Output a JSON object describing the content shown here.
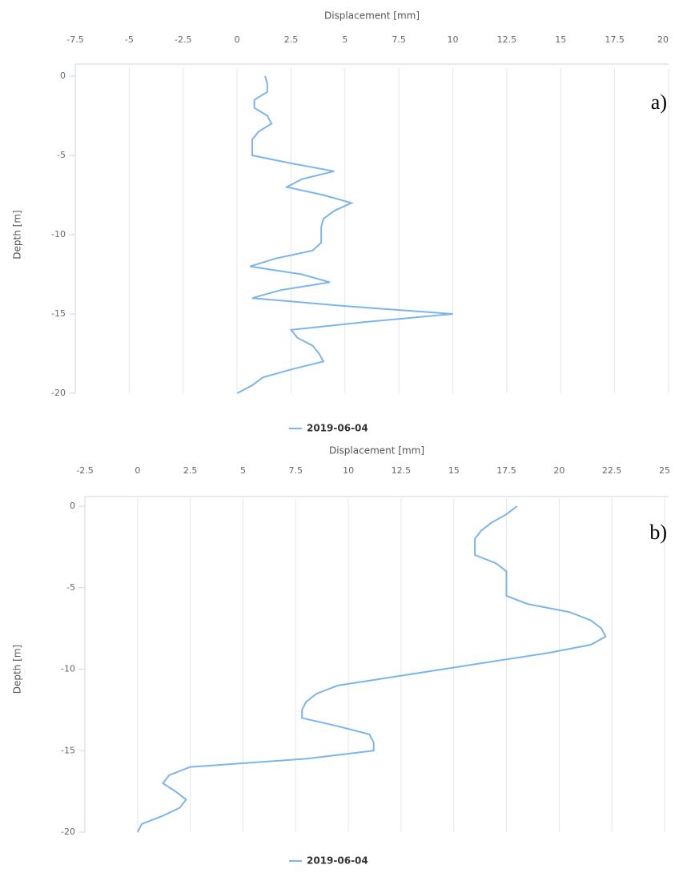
{
  "chart_data": [
    {
      "type": "line",
      "x_label": "Displacement [mm]",
      "y_label": "Depth [m]",
      "annotation": "a)",
      "xlim": [
        -7.5,
        20
      ],
      "xticks": [
        -7.5,
        -5,
        -2.5,
        0,
        2.5,
        5,
        7.5,
        10,
        12.5,
        15,
        17.5,
        20
      ],
      "ylim": [
        -20,
        0
      ],
      "yticks": [
        0,
        -5,
        -10,
        -15,
        -20
      ],
      "grid": true,
      "series": [
        {
          "name": "2019-06-04",
          "color": "#7cb5ec",
          "x": [
            1.3,
            1.4,
            1.4,
            0.8,
            0.8,
            1.4,
            1.6,
            1.0,
            0.7,
            0.7,
            0.7,
            2.5,
            4.5,
            3.0,
            2.3,
            4.0,
            5.3,
            4.5,
            4.0,
            3.9,
            3.9,
            3.9,
            3.5,
            1.8,
            0.6,
            3.0,
            4.3,
            2.0,
            0.7,
            5.0,
            10,
            6.0,
            2.5,
            2.8,
            3.5,
            3.8,
            4.0,
            2.5,
            1.2,
            0.7,
            0
          ],
          "values": [
            0,
            -0.5,
            -1,
            -1.5,
            -2,
            -2.5,
            -3,
            -3.5,
            -4,
            -4.5,
            -5,
            -5.5,
            -6,
            -6.5,
            -7,
            -7.5,
            -8,
            -8.5,
            -9,
            -9.5,
            -10,
            -10.5,
            -11,
            -11.5,
            -12,
            -12.5,
            -13,
            -13.5,
            -14,
            -14.5,
            -15,
            -15.5,
            -16,
            -16.5,
            -17,
            -17.5,
            -18,
            -18.5,
            -19,
            -19.5,
            -20
          ]
        }
      ]
    },
    {
      "type": "line",
      "x_label": "Displacement [mm]",
      "y_label": "Depth [m]",
      "annotation": "b)",
      "xlim": [
        -2.5,
        25
      ],
      "xticks": [
        -2.5,
        0,
        2.5,
        5,
        7.5,
        10,
        12.5,
        15,
        17.5,
        20,
        22.5,
        25
      ],
      "ylim": [
        -20,
        0
      ],
      "yticks": [
        0,
        -5,
        -10,
        -15,
        -20
      ],
      "grid": true,
      "series": [
        {
          "name": "2019-06-04",
          "color": "#7cb5ec",
          "x": [
            18,
            17.5,
            16.8,
            16.3,
            16,
            16,
            16,
            17,
            17.5,
            17.5,
            17.5,
            17.5,
            18.5,
            20.5,
            21.5,
            22,
            22.2,
            21.5,
            19.5,
            17,
            14.5,
            12,
            9.5,
            8.5,
            8,
            7.8,
            7.8,
            9.5,
            11,
            11.2,
            11.2,
            8,
            2.5,
            1.5,
            1.2,
            1.8,
            2.3,
            2,
            1.2,
            0.2,
            0
          ],
          "values": [
            0,
            -0.5,
            -1,
            -1.5,
            -2,
            -2.5,
            -3,
            -3.5,
            -4,
            -4.5,
            -5,
            -5.5,
            -6,
            -6.5,
            -7,
            -7.5,
            -8,
            -8.5,
            -9,
            -9.5,
            -10,
            -10.5,
            -11,
            -11.5,
            -12,
            -12.5,
            -13,
            -13.5,
            -14,
            -14.5,
            -15,
            -15.5,
            -16,
            -16.5,
            -17,
            -17.5,
            -18,
            -18.5,
            -19,
            -19.5,
            -20
          ]
        }
      ]
    }
  ]
}
